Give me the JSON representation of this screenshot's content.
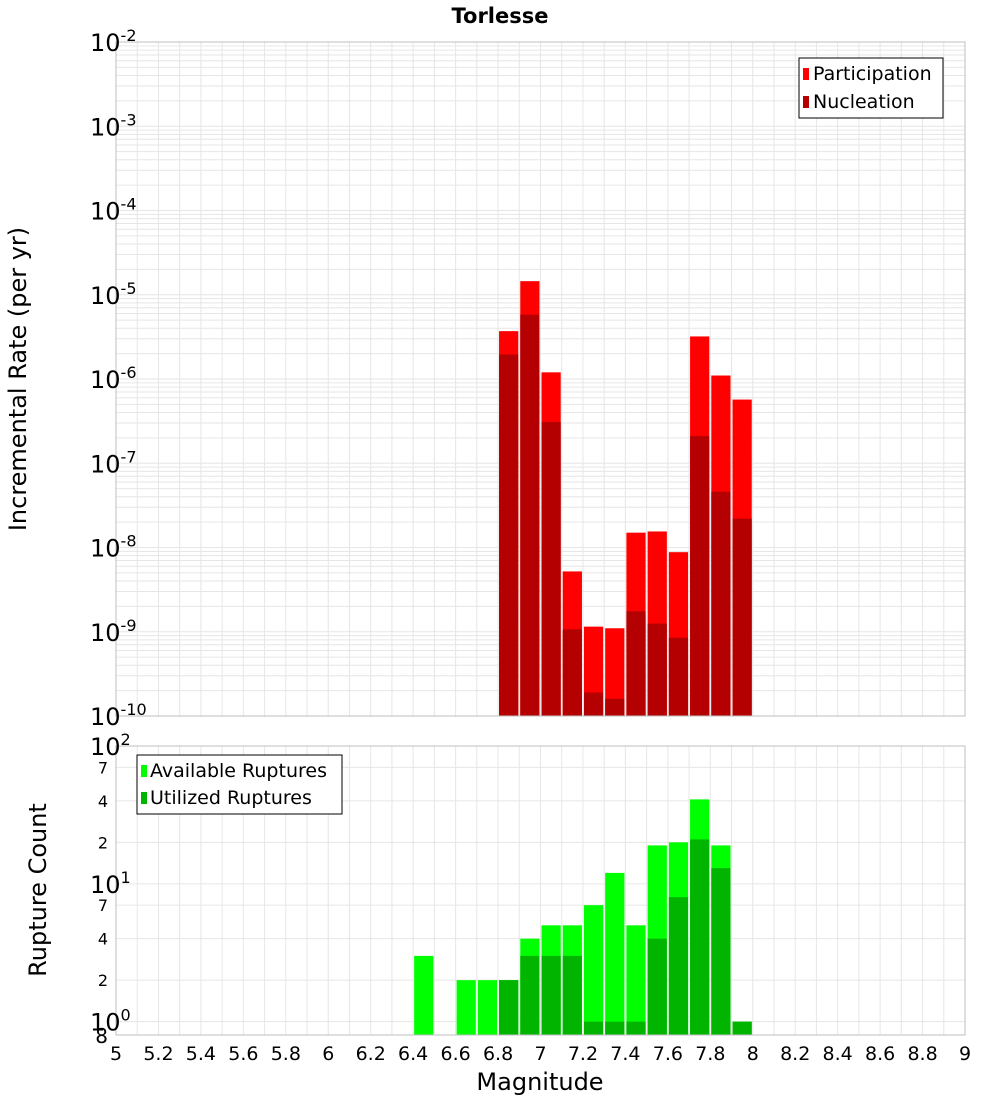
{
  "title": "Torlesse",
  "colors": {
    "participation": "#ff0000",
    "nucleation": "#b40000",
    "available": "#00ff00",
    "utilized": "#00b400",
    "grid": "#e6e6e6",
    "frame": "#bfbfbf"
  },
  "chart_data": [
    {
      "type": "bar",
      "title": "Torlesse",
      "xlabel": "Magnitude",
      "ylabel": "Incremental Rate (per yr)",
      "yscale": "log",
      "ylim": [
        1e-10,
        0.01
      ],
      "xlim": [
        5,
        9
      ],
      "ytick_labels": [
        {
          "base": "10",
          "exp": "-10"
        },
        {
          "base": "10",
          "exp": "-9"
        },
        {
          "base": "10",
          "exp": "-8"
        },
        {
          "base": "10",
          "exp": "-7"
        },
        {
          "base": "10",
          "exp": "-6"
        },
        {
          "base": "10",
          "exp": "-5"
        },
        {
          "base": "10",
          "exp": "-4"
        },
        {
          "base": "10",
          "exp": "-3"
        },
        {
          "base": "10",
          "exp": "-2"
        }
      ],
      "legend": "top-right",
      "grid": true,
      "x": [
        6.85,
        6.95,
        7.05,
        7.15,
        7.25,
        7.35,
        7.45,
        7.55,
        7.65,
        7.75,
        7.85,
        7.95
      ],
      "series": [
        {
          "name": "Participation",
          "values": [
            3.7e-06,
            1.45e-05,
            1.2e-06,
            5.2e-09,
            1.15e-09,
            1.1e-09,
            1.5e-08,
            1.55e-08,
            8.8e-09,
            3.2e-06,
            1.1e-06,
            5.7e-07
          ]
        },
        {
          "name": "Nucleation",
          "values": [
            1.95e-06,
            5.8e-06,
            3.1e-07,
            1.07e-09,
            1.9e-10,
            1.6e-10,
            1.75e-09,
            1.25e-09,
            8.5e-10,
            2.1e-07,
            4.6e-08,
            2.2e-08
          ]
        }
      ]
    },
    {
      "type": "bar",
      "xlabel": "Magnitude",
      "ylabel": "Rupture Count",
      "yscale": "log",
      "ylim": [
        0.8,
        100
      ],
      "xlim": [
        5,
        9
      ],
      "major_tick_labels": [
        {
          "base": "10",
          "exp": "0"
        },
        {
          "base": "10",
          "exp": "1"
        },
        {
          "base": "10",
          "exp": "2"
        }
      ],
      "minor_tick_labels": [
        "8",
        "2",
        "4",
        "7",
        "2",
        "4",
        "7"
      ],
      "xtick_labels": [
        "5",
        "5.2",
        "5.4",
        "5.6",
        "5.8",
        "6",
        "6.2",
        "6.4",
        "6.6",
        "6.8",
        "7",
        "7.2",
        "7.4",
        "7.6",
        "7.8",
        "8",
        "8.2",
        "8.4",
        "8.6",
        "8.8",
        "9"
      ],
      "legend": "top-left",
      "grid": true,
      "x": [
        6.45,
        6.65,
        6.75,
        6.85,
        6.95,
        7.05,
        7.15,
        7.25,
        7.35,
        7.45,
        7.55,
        7.65,
        7.75,
        7.85,
        7.95
      ],
      "series": [
        {
          "name": "Available Ruptures",
          "values": [
            3,
            2,
            2,
            2,
            4,
            5,
            5,
            7,
            12,
            5,
            19,
            20,
            41,
            19,
            1
          ]
        },
        {
          "name": "Utilized Ruptures",
          "values": [
            0,
            0,
            0,
            2,
            3,
            3,
            3,
            1,
            1,
            1,
            4,
            8,
            21,
            13,
            1
          ]
        }
      ]
    }
  ]
}
